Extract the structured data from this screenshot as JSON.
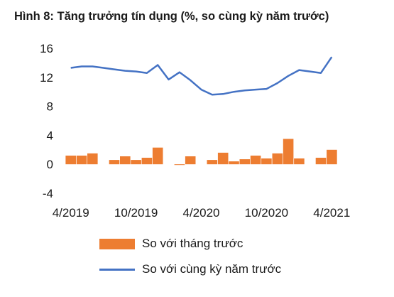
{
  "chart_data": {
    "type": "bar+line",
    "title": "Hình 8: Tăng trưởng tín dụng (%, so cùng kỳ năm trước)",
    "ylim": [
      -4,
      16
    ],
    "yticks": [
      "-4",
      "0",
      "4",
      "8",
      "12",
      "16"
    ],
    "xtick_labels": [
      "4/2019",
      "10/2019",
      "4/2020",
      "10/2020",
      "4/2021"
    ],
    "categories": [
      "4/2019",
      "5/2019",
      "6/2019",
      "7/2019",
      "8/2019",
      "9/2019",
      "10/2019",
      "11/2019",
      "12/2019",
      "1/2020",
      "2/2020",
      "3/2020",
      "4/2020",
      "5/2020",
      "6/2020",
      "7/2020",
      "8/2020",
      "9/2020",
      "10/2020",
      "11/2020",
      "12/2020",
      "1/2021",
      "2/2021",
      "3/2021",
      "4/2021"
    ],
    "series": [
      {
        "name": "So với tháng trước",
        "type": "bar",
        "color": "#ED7D31",
        "values": [
          1.2,
          1.2,
          1.5,
          0.0,
          0.6,
          1.1,
          0.6,
          0.9,
          2.3,
          0.0,
          -0.1,
          1.1,
          0.0,
          0.6,
          1.6,
          0.4,
          0.7,
          1.2,
          0.8,
          1.5,
          3.5,
          0.8,
          0.0,
          0.9,
          2.0
        ]
      },
      {
        "name": "So với cùng kỳ năm trước",
        "type": "line",
        "color": "#4472C4",
        "values": [
          13.3,
          13.5,
          13.5,
          13.3,
          13.1,
          12.9,
          12.8,
          12.6,
          13.7,
          11.7,
          12.7,
          11.6,
          10.3,
          9.6,
          9.7,
          10.0,
          10.2,
          10.3,
          10.4,
          11.2,
          12.2,
          13.0,
          12.8,
          12.6,
          14.8
        ]
      }
    ],
    "grid": false,
    "legend_position": "bottom"
  }
}
